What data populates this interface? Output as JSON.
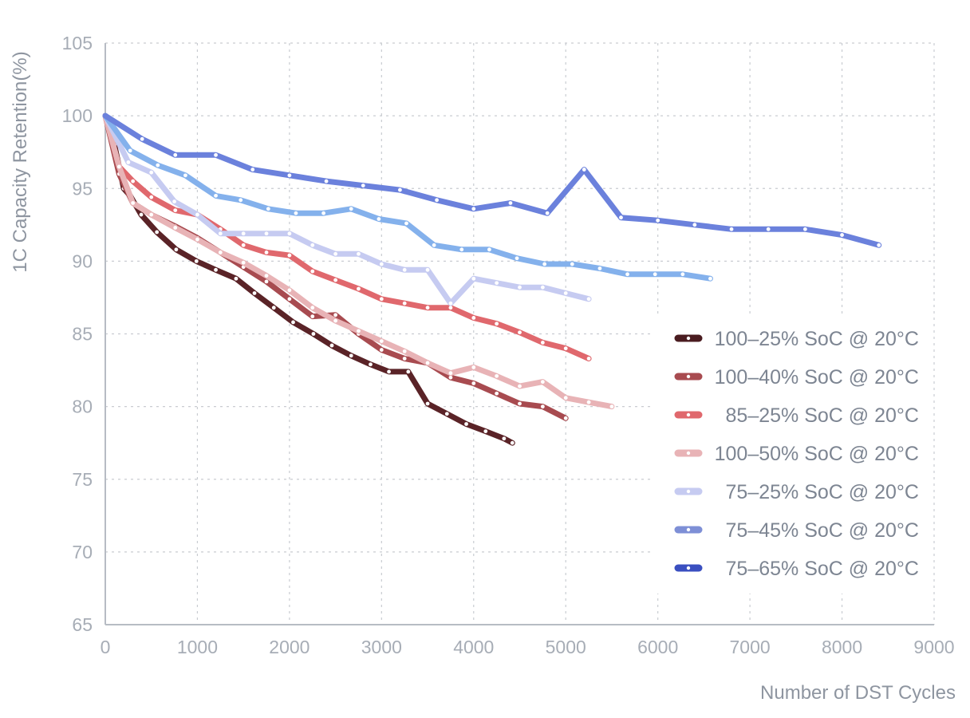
{
  "chart_data": {
    "type": "line",
    "title": "",
    "xlabel": "Number of DST Cycles",
    "ylabel": "1C Capacity Retention(%)",
    "xlim": [
      0,
      9000
    ],
    "ylim": [
      65,
      105
    ],
    "xticks": [
      0,
      1000,
      2000,
      3000,
      4000,
      5000,
      6000,
      7000,
      8000,
      9000
    ],
    "yticks": [
      65,
      70,
      75,
      80,
      85,
      90,
      95,
      100,
      105
    ],
    "grid": true,
    "legend_position": "right",
    "series": [
      {
        "name": "100–25%  SoC @ 20°C",
        "color": "#5a2327",
        "x": [
          0,
          100,
          200,
          270,
          390,
          560,
          770,
          990,
          1200,
          1420,
          1620,
          1830,
          2040,
          2260,
          2460,
          2670,
          2880,
          3080,
          3290,
          3500,
          3710,
          3920,
          4130,
          4330,
          4420
        ],
        "y": [
          100,
          98.0,
          95.0,
          94.5,
          93.2,
          92.0,
          90.8,
          90.0,
          89.4,
          88.8,
          87.8,
          86.8,
          85.8,
          85.0,
          84.2,
          83.5,
          82.9,
          82.4,
          82.4,
          80.2,
          79.5,
          78.8,
          78.3,
          77.8,
          77.5
        ]
      },
      {
        "name": "100–40%  SoC @ 20°C",
        "color": "#a84b50",
        "x": [
          0,
          150,
          300,
          500,
          760,
          1000,
          1250,
          1500,
          1750,
          2000,
          2250,
          2500,
          2750,
          3000,
          3250,
          3500,
          3750,
          4000,
          4250,
          4500,
          4750,
          5000
        ],
        "y": [
          100,
          96.0,
          94.0,
          93.2,
          92.4,
          91.6,
          90.6,
          89.6,
          88.6,
          87.4,
          86.2,
          86.3,
          85.0,
          83.9,
          83.3,
          83.0,
          82.0,
          81.6,
          80.9,
          80.2,
          80.0,
          79.2
        ]
      },
      {
        "name": "85–25%  SoC @ 20°C",
        "color": "#e0686d",
        "x": [
          0,
          150,
          300,
          500,
          760,
          1000,
          1250,
          1500,
          1750,
          2000,
          2250,
          2500,
          2750,
          3000,
          3250,
          3500,
          3750,
          4000,
          4250,
          4500,
          4750,
          5000,
          5250
        ],
        "y": [
          100,
          96.5,
          95.5,
          94.4,
          93.5,
          93.2,
          92.2,
          91.1,
          90.6,
          90.4,
          89.3,
          88.7,
          88.1,
          87.4,
          87.1,
          86.8,
          86.8,
          86.1,
          85.7,
          85.1,
          84.4,
          84.0,
          83.3
        ]
      },
      {
        "name": "100–50%  SoC @ 20°C",
        "color": "#e8b3b6",
        "x": [
          0,
          150,
          300,
          500,
          760,
          1000,
          1250,
          1500,
          1750,
          2000,
          2250,
          2500,
          2750,
          3000,
          3250,
          3500,
          3750,
          4000,
          4250,
          4500,
          4750,
          5000,
          5250,
          5500
        ],
        "y": [
          100,
          96.5,
          94.0,
          93.2,
          92.3,
          91.5,
          90.6,
          89.9,
          89.0,
          88.0,
          86.8,
          85.9,
          85.2,
          84.5,
          83.8,
          83.0,
          82.3,
          82.7,
          82.1,
          81.4,
          81.7,
          80.6,
          80.3,
          80.0
        ]
      },
      {
        "name": "75–25%  SoC @ 20°C",
        "color": "#c6cbf1",
        "x": [
          0,
          250,
          500,
          750,
          1000,
          1250,
          1500,
          1750,
          2000,
          2250,
          2500,
          2750,
          3000,
          3250,
          3500,
          3750,
          4000,
          4250,
          4500,
          4750,
          5000,
          5250
        ],
        "y": [
          100,
          96.8,
          96.1,
          94.1,
          93.2,
          91.9,
          91.9,
          91.9,
          91.9,
          91.1,
          90.5,
          90.5,
          89.8,
          89.4,
          89.4,
          87.1,
          88.8,
          88.5,
          88.2,
          88.2,
          87.8,
          87.4
        ]
      },
      {
        "name": "75–45%  SoC @ 20°C",
        "color": "#84b1ec",
        "x": [
          0,
          270,
          570,
          870,
          1200,
          1470,
          1770,
          2070,
          2370,
          2670,
          2970,
          3270,
          3570,
          3870,
          4170,
          4470,
          4770,
          5070,
          5370,
          5670,
          5970,
          6270,
          6570
        ],
        "y": [
          100,
          97.6,
          96.6,
          95.9,
          94.5,
          94.2,
          93.6,
          93.3,
          93.3,
          93.6,
          92.9,
          92.6,
          91.1,
          90.8,
          90.8,
          90.2,
          89.8,
          89.8,
          89.5,
          89.1,
          89.1,
          89.1,
          88.8
        ]
      },
      {
        "name": "75–65%  SoC @ 20°C",
        "color": "#6b81dc",
        "x": [
          0,
          400,
          760,
          1200,
          1600,
          2000,
          2400,
          2800,
          3200,
          3600,
          4000,
          4400,
          4800,
          5200,
          5600,
          6000,
          6400,
          6800,
          7200,
          7600,
          8000,
          8400
        ],
        "y": [
          100,
          98.4,
          97.3,
          97.3,
          96.3,
          95.9,
          95.5,
          95.2,
          94.9,
          94.2,
          93.6,
          94.0,
          93.3,
          96.3,
          93.0,
          92.8,
          92.5,
          92.2,
          92.2,
          92.2,
          91.8,
          91.1
        ]
      }
    ],
    "legend_swatch_colors": [
      "#4a1c20",
      "#a84b50",
      "#e0686d",
      "#e8b3b6",
      "#c6cbf1",
      "#7e8fd6",
      "#3a4fc0"
    ]
  }
}
